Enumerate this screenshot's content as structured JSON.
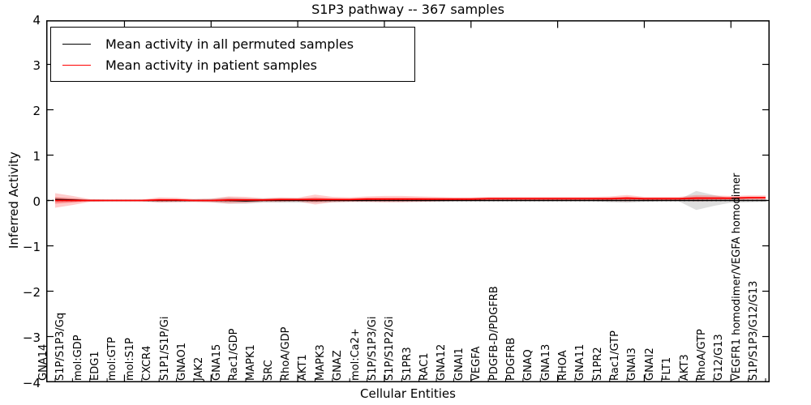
{
  "title": "S1P3 pathway -- 367 samples",
  "axes": {
    "x_label": "Cellular Entities",
    "y_label": "Inferred Activity",
    "y_tick_labels": [
      "4",
      "3",
      "2",
      "1",
      "0",
      "−1",
      "−2",
      "−3",
      "−4"
    ],
    "y_tick_values": [
      4,
      3,
      2,
      1,
      0,
      -1,
      -2,
      -3,
      -4
    ]
  },
  "legend": {
    "position": "upper left",
    "items": [
      {
        "label": "Mean activity in all permuted samples",
        "color": "#000000"
      },
      {
        "label": "Mean activity in patient samples",
        "color": "#ff0000"
      }
    ]
  },
  "colors": {
    "permuted_line": "#000000",
    "patient_line": "#ff0000",
    "permuted_band": "rgba(0,0,0,0.13)",
    "patient_band": "rgba(255,0,0,0.20)",
    "patient_band_inner": "rgba(255,0,0,0.28)",
    "background": "#ffffff"
  },
  "chart_data": {
    "type": "line",
    "title": "S1P3 pathway -- 367 samples",
    "xlabel": "Cellular Entities",
    "ylabel": "Inferred Activity",
    "ylim": [
      -4,
      4
    ],
    "grid": false,
    "zero_line_style": "dotted",
    "legend_position": "upper left",
    "x_tick_label_rotation": 90,
    "categories": [
      "GNA14",
      "S1P/S1P3/Gq",
      "mol:GDP",
      "EDG1",
      "mol:GTP",
      "mol:S1P",
      "CXCR4",
      "S1P1/S1P/Gi",
      "GNAO1",
      "JAK2",
      "GNA15",
      "Rac1/GDP",
      "MAPK1",
      "SRC",
      "RhoA/GDP",
      "AKT1",
      "MAPK3",
      "GNAZ",
      "mol:Ca2+",
      "S1P/S1P3/Gi",
      "S1P/S1P2/Gi",
      "S1PR3",
      "RAC1",
      "GNA12",
      "GNAI1",
      "VEGFA",
      "PDGFB-D/PDGFRB",
      "PDGFRB",
      "GNAQ",
      "GNA13",
      "RHOA",
      "GNA11",
      "S1PR2",
      "Rac1/GTP",
      "GNAI3",
      "GNAI2",
      "FLT1",
      "AKT3",
      "RhoA/GTP",
      "G12/G13",
      "VEGFR1 homodimer/VEGFA homodimer",
      "S1P/S1P3/G12/G13"
    ],
    "series": [
      {
        "name": "Mean activity in all permuted samples",
        "color": "#000000",
        "values": [
          0.02,
          0.01,
          0,
          0,
          0,
          0,
          0,
          0,
          0,
          0,
          0,
          -0.01,
          0,
          0,
          0,
          0,
          0,
          0,
          0,
          0,
          0,
          0,
          0,
          0,
          0,
          0,
          0,
          0,
          0,
          0,
          0,
          0,
          0,
          0,
          0,
          0,
          0,
          0,
          0,
          0,
          0,
          0
        ],
        "band_halfwidth": [
          0.05,
          0.04,
          0.02,
          0.02,
          0.02,
          0.02,
          0.03,
          0.03,
          0.03,
          0.04,
          0.07,
          0.06,
          0.05,
          0.05,
          0.05,
          0.05,
          0.04,
          0.03,
          0.03,
          0.03,
          0.03,
          0.03,
          0.03,
          0.02,
          0.02,
          0.02,
          0.02,
          0.02,
          0.02,
          0.02,
          0.02,
          0.02,
          0.04,
          0.05,
          0.03,
          0.02,
          0.02,
          0.21,
          0.12,
          0.05,
          0.04,
          0.03
        ]
      },
      {
        "name": "Mean activity in patient samples",
        "color": "#ff0000",
        "values": [
          0,
          0,
          0,
          0,
          0,
          0,
          0.01,
          0.01,
          0,
          0,
          0.01,
          0.01,
          0.01,
          0.02,
          0.02,
          0.02,
          0.02,
          0.02,
          0.03,
          0.03,
          0.03,
          0.03,
          0.03,
          0.03,
          0.03,
          0.04,
          0.04,
          0.04,
          0.04,
          0.04,
          0.04,
          0.04,
          0.04,
          0.05,
          0.04,
          0.04,
          0.04,
          0.05,
          0.05,
          0.05,
          0.06,
          0.06
        ],
        "band_halfwidth": [
          0.16,
          0.1,
          0.03,
          0.02,
          0.02,
          0.02,
          0.06,
          0.05,
          0.03,
          0.04,
          0.08,
          0.07,
          0.04,
          0.05,
          0.04,
          0.11,
          0.06,
          0.05,
          0.06,
          0.07,
          0.07,
          0.06,
          0.05,
          0.04,
          0.04,
          0.04,
          0.04,
          0.04,
          0.04,
          0.04,
          0.04,
          0.04,
          0.05,
          0.07,
          0.04,
          0.04,
          0.04,
          0.07,
          0.06,
          0.05,
          0.05,
          0.05
        ]
      }
    ]
  }
}
